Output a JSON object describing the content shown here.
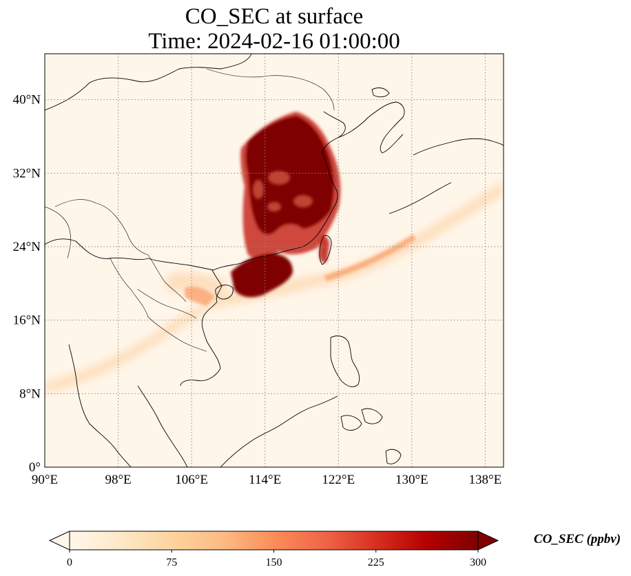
{
  "title": {
    "line1": "CO_SEC at surface",
    "line2": "Time: 2024-02-16 01:00:00"
  },
  "map": {
    "lon_range": [
      90,
      140
    ],
    "lat_range": [
      0,
      45
    ],
    "lon_ticks": [
      "90°E",
      "98°E",
      "106°E",
      "114°E",
      "122°E",
      "130°E",
      "138°E"
    ],
    "lat_ticks": [
      "0°",
      "8°N",
      "16°N",
      "24°N",
      "32°N",
      "40°N"
    ],
    "gridlines": true
  },
  "colorbar": {
    "label": "CO_SEC (ppbv)",
    "ticks": [
      "0",
      "75",
      "150",
      "225",
      "300"
    ],
    "range": [
      0,
      300
    ],
    "extend": "both",
    "colormap": "OrRd",
    "colors": [
      "#fff7ec",
      "#fee8c8",
      "#fdd49e",
      "#fdbb84",
      "#fc8d59",
      "#ef6548",
      "#d7301f",
      "#b30000",
      "#7f0000"
    ]
  }
}
